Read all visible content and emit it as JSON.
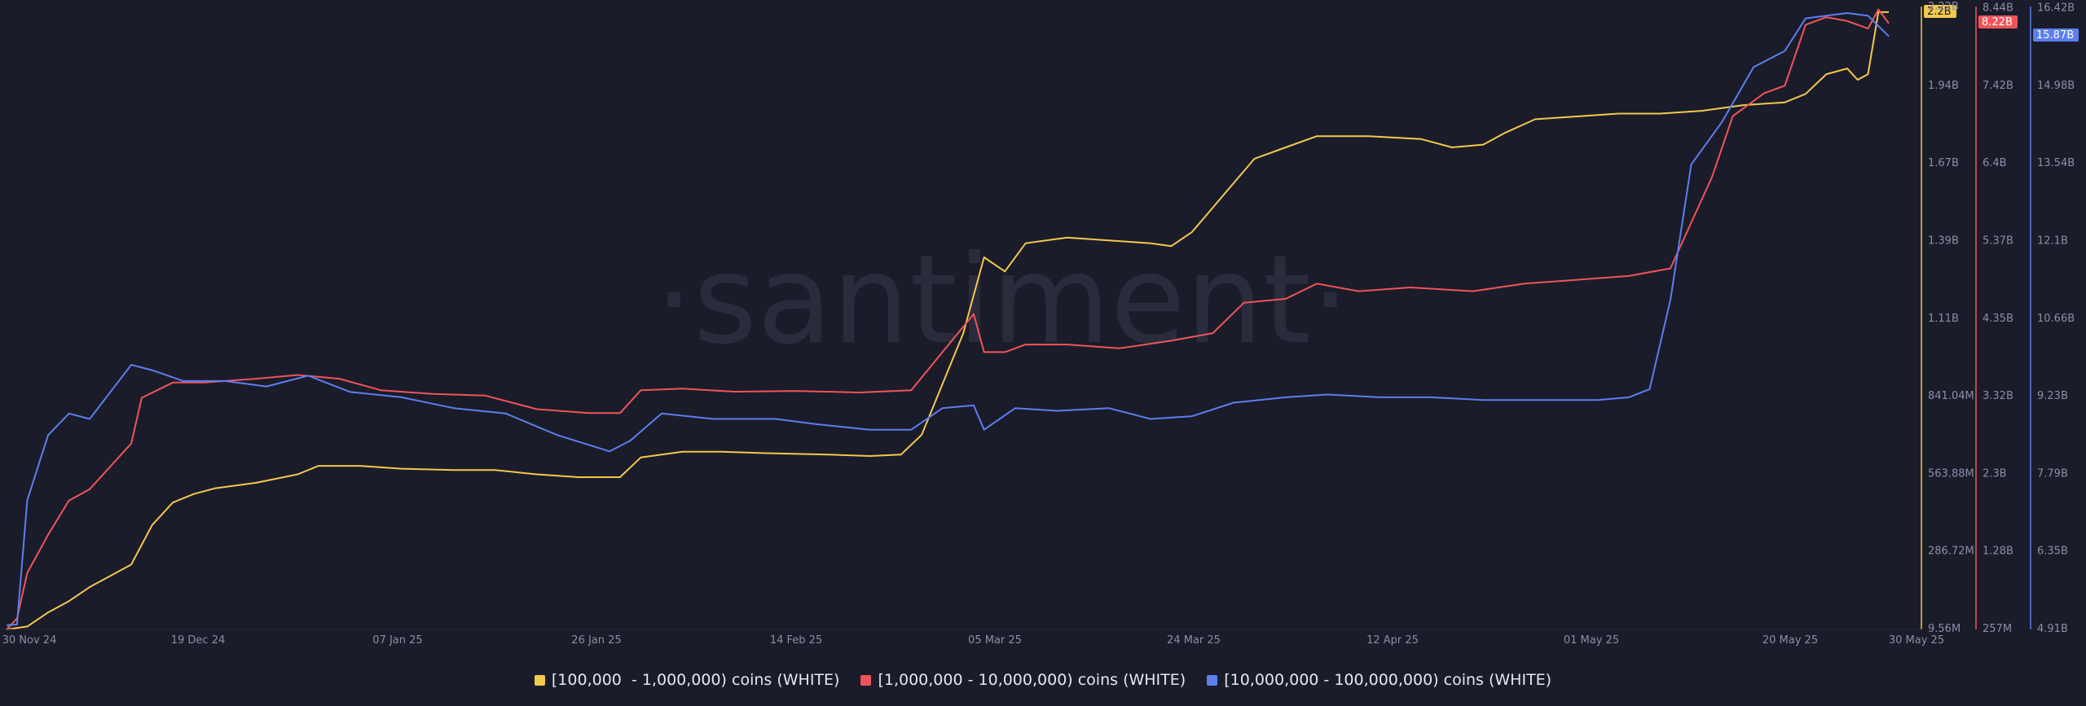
{
  "watermark": "·santiment·",
  "colors": {
    "background": "#1b1c2a",
    "grid": "#242636",
    "tick_text": "#8a8ea8",
    "yellow": "#f2c94c",
    "red": "#f0545b",
    "blue": "#5b7ff0"
  },
  "chart_data": {
    "type": "line",
    "x_ticks": [
      "30 Nov 24",
      "19 Dec 24",
      "07 Jan 25",
      "26 Jan 25",
      "14 Feb 25",
      "05 Mar 25",
      "24 Mar 25",
      "12 Apr 25",
      "01 May 25",
      "20 May 25",
      "30 May 25"
    ],
    "x_range": [
      "2024-11-30",
      "2025-05-30"
    ],
    "grid": false,
    "legend_position": "bottom-center",
    "axes": [
      {
        "id": "yellow",
        "ticks": [
          "9.56M",
          "286.72M",
          "563.88M",
          "841.04M",
          "1.11B",
          "1.39B",
          "1.67B",
          "1.94B"
        ],
        "range": [
          9560000,
          2220000000
        ],
        "current_value_label": "2.2B",
        "top_label": "2.22B",
        "color": "#f2c94c"
      },
      {
        "id": "red",
        "ticks": [
          "257M",
          "1.28B",
          "2.3B",
          "3.32B",
          "4.35B",
          "5.37B",
          "6.4B",
          "7.42B",
          "8.44B"
        ],
        "range": [
          257000000,
          8440000000
        ],
        "current_value_label": "8.22B",
        "color": "#f0545b"
      },
      {
        "id": "blue",
        "ticks": [
          "4.91B",
          "6.35B",
          "7.79B",
          "9.23B",
          "10.66B",
          "12.1B",
          "13.54B",
          "14.98B",
          "16.42B"
        ],
        "range": [
          4910000000,
          16420000000
        ],
        "current_value_label": "15.87B",
        "color": "#5b7ff0"
      }
    ],
    "series": [
      {
        "name": "[100,000  - 1,000,000) coins (WHITE)",
        "color": "#f2c94c",
        "axis": "yellow",
        "points": [
          [
            "2024-11-30",
            9600000
          ],
          [
            "2024-12-02",
            20000000
          ],
          [
            "2024-12-04",
            70000000
          ],
          [
            "2024-12-06",
            110000000
          ],
          [
            "2024-12-08",
            160000000
          ],
          [
            "2024-12-10",
            200000000
          ],
          [
            "2024-12-12",
            240000000
          ],
          [
            "2024-12-14",
            380000000
          ],
          [
            "2024-12-16",
            460000000
          ],
          [
            "2024-12-18",
            490000000
          ],
          [
            "2024-12-20",
            510000000
          ],
          [
            "2024-12-24",
            530000000
          ],
          [
            "2024-12-28",
            560000000
          ],
          [
            "2024-12-30",
            590000000
          ],
          [
            "2025-01-03",
            590000000
          ],
          [
            "2025-01-07",
            580000000
          ],
          [
            "2025-01-12",
            575000000
          ],
          [
            "2025-01-16",
            575000000
          ],
          [
            "2025-01-20",
            560000000
          ],
          [
            "2025-01-24",
            550000000
          ],
          [
            "2025-01-26",
            550000000
          ],
          [
            "2025-01-28",
            550000000
          ],
          [
            "2025-01-30",
            620000000
          ],
          [
            "2025-02-03",
            640000000
          ],
          [
            "2025-02-07",
            640000000
          ],
          [
            "2025-02-11",
            635000000
          ],
          [
            "2025-02-17",
            630000000
          ],
          [
            "2025-02-21",
            625000000
          ],
          [
            "2025-02-24",
            630000000
          ],
          [
            "2025-02-26",
            700000000
          ],
          [
            "2025-02-28",
            880000000
          ],
          [
            "2025-03-02",
            1060000000
          ],
          [
            "2025-03-04",
            1330000000
          ],
          [
            "2025-03-06",
            1280000000
          ],
          [
            "2025-03-08",
            1380000000
          ],
          [
            "2025-03-12",
            1400000000
          ],
          [
            "2025-03-16",
            1390000000
          ],
          [
            "2025-03-20",
            1380000000
          ],
          [
            "2025-03-22",
            1370000000
          ],
          [
            "2025-03-24",
            1420000000
          ],
          [
            "2025-03-27",
            1550000000
          ],
          [
            "2025-03-30",
            1680000000
          ],
          [
            "2025-04-02",
            1720000000
          ],
          [
            "2025-04-05",
            1760000000
          ],
          [
            "2025-04-10",
            1760000000
          ],
          [
            "2025-04-15",
            1750000000
          ],
          [
            "2025-04-18",
            1720000000
          ],
          [
            "2025-04-21",
            1730000000
          ],
          [
            "2025-04-23",
            1770000000
          ],
          [
            "2025-04-26",
            1820000000
          ],
          [
            "2025-04-30",
            1830000000
          ],
          [
            "2025-05-04",
            1840000000
          ],
          [
            "2025-05-08",
            1840000000
          ],
          [
            "2025-05-12",
            1850000000
          ],
          [
            "2025-05-16",
            1870000000
          ],
          [
            "2025-05-20",
            1880000000
          ],
          [
            "2025-05-22",
            1910000000
          ],
          [
            "2025-05-24",
            1980000000
          ],
          [
            "2025-05-26",
            2000000000
          ],
          [
            "2025-05-27",
            1960000000
          ],
          [
            "2025-05-28",
            1980000000
          ],
          [
            "2025-05-29",
            2200000000
          ],
          [
            "2025-05-30",
            2200000000
          ]
        ]
      },
      {
        "name": "[1,000,000 - 10,000,000) coins (WHITE)",
        "color": "#f0545b",
        "axis": "red",
        "points": [
          [
            "2024-11-30",
            257000000
          ],
          [
            "2024-12-01",
            400000000
          ],
          [
            "2024-12-02",
            1000000000
          ],
          [
            "2024-12-04",
            1500000000
          ],
          [
            "2024-12-06",
            1950000000
          ],
          [
            "2024-12-08",
            2100000000
          ],
          [
            "2024-12-10",
            2400000000
          ],
          [
            "2024-12-12",
            2700000000
          ],
          [
            "2024-12-13",
            3300000000
          ],
          [
            "2024-12-16",
            3500000000
          ],
          [
            "2024-12-19",
            3500000000
          ],
          [
            "2024-12-24",
            3550000000
          ],
          [
            "2024-12-28",
            3600000000
          ],
          [
            "2025-01-01",
            3550000000
          ],
          [
            "2025-01-05",
            3400000000
          ],
          [
            "2025-01-10",
            3350000000
          ],
          [
            "2025-01-15",
            3330000000
          ],
          [
            "2025-01-20",
            3150000000
          ],
          [
            "2025-01-25",
            3100000000
          ],
          [
            "2025-01-28",
            3100000000
          ],
          [
            "2025-01-30",
            3400000000
          ],
          [
            "2025-02-03",
            3420000000
          ],
          [
            "2025-02-08",
            3380000000
          ],
          [
            "2025-02-14",
            3390000000
          ],
          [
            "2025-02-20",
            3370000000
          ],
          [
            "2025-02-25",
            3400000000
          ],
          [
            "2025-02-28",
            3900000000
          ],
          [
            "2025-03-03",
            4400000000
          ],
          [
            "2025-03-04",
            3900000000
          ],
          [
            "2025-03-06",
            3900000000
          ],
          [
            "2025-03-08",
            4000000000
          ],
          [
            "2025-03-12",
            4000000000
          ],
          [
            "2025-03-17",
            3950000000
          ],
          [
            "2025-03-22",
            4050000000
          ],
          [
            "2025-03-26",
            4150000000
          ],
          [
            "2025-03-29",
            4550000000
          ],
          [
            "2025-04-02",
            4600000000
          ],
          [
            "2025-04-05",
            4800000000
          ],
          [
            "2025-04-09",
            4700000000
          ],
          [
            "2025-04-14",
            4750000000
          ],
          [
            "2025-04-20",
            4700000000
          ],
          [
            "2025-04-25",
            4800000000
          ],
          [
            "2025-04-30",
            4850000000
          ],
          [
            "2025-05-05",
            4900000000
          ],
          [
            "2025-05-09",
            5000000000
          ],
          [
            "2025-05-11",
            5600000000
          ],
          [
            "2025-05-13",
            6200000000
          ],
          [
            "2025-05-15",
            7000000000
          ],
          [
            "2025-05-18",
            7300000000
          ],
          [
            "2025-05-20",
            7400000000
          ],
          [
            "2025-05-22",
            8200000000
          ],
          [
            "2025-05-24",
            8300000000
          ],
          [
            "2025-05-26",
            8250000000
          ],
          [
            "2025-05-28",
            8150000000
          ],
          [
            "2025-05-29",
            8400000000
          ],
          [
            "2025-05-30",
            8220000000
          ]
        ]
      },
      {
        "name": "[10,000,000 - 100,000,000) coins (WHITE)",
        "color": "#5b7ff0",
        "axis": "blue",
        "points": [
          [
            "2024-11-30",
            4990000000
          ],
          [
            "2024-12-01",
            5000000000
          ],
          [
            "2024-12-02",
            7300000000
          ],
          [
            "2024-12-04",
            8500000000
          ],
          [
            "2024-12-06",
            8900000000
          ],
          [
            "2024-12-08",
            8800000000
          ],
          [
            "2024-12-10",
            9300000000
          ],
          [
            "2024-12-12",
            9800000000
          ],
          [
            "2024-12-14",
            9700000000
          ],
          [
            "2024-12-17",
            9500000000
          ],
          [
            "2024-12-21",
            9500000000
          ],
          [
            "2024-12-25",
            9400000000
          ],
          [
            "2024-12-29",
            9600000000
          ],
          [
            "2025-01-02",
            9300000000
          ],
          [
            "2025-01-07",
            9200000000
          ],
          [
            "2025-01-12",
            9000000000
          ],
          [
            "2025-01-17",
            8900000000
          ],
          [
            "2025-01-22",
            8500000000
          ],
          [
            "2025-01-27",
            8200000000
          ],
          [
            "2025-01-29",
            8400000000
          ],
          [
            "2025-02-01",
            8900000000
          ],
          [
            "2025-02-06",
            8800000000
          ],
          [
            "2025-02-12",
            8800000000
          ],
          [
            "2025-02-16",
            8700000000
          ],
          [
            "2025-02-21",
            8600000000
          ],
          [
            "2025-02-25",
            8600000000
          ],
          [
            "2025-02-28",
            9000000000
          ],
          [
            "2025-03-03",
            9050000000
          ],
          [
            "2025-03-04",
            8600000000
          ],
          [
            "2025-03-07",
            9000000000
          ],
          [
            "2025-03-11",
            8950000000
          ],
          [
            "2025-03-16",
            9000000000
          ],
          [
            "2025-03-20",
            8800000000
          ],
          [
            "2025-03-24",
            8850000000
          ],
          [
            "2025-03-28",
            9100000000
          ],
          [
            "2025-04-02",
            9200000000
          ],
          [
            "2025-04-06",
            9250000000
          ],
          [
            "2025-04-11",
            9200000000
          ],
          [
            "2025-04-16",
            9200000000
          ],
          [
            "2025-04-21",
            9150000000
          ],
          [
            "2025-04-27",
            9150000000
          ],
          [
            "2025-05-02",
            9150000000
          ],
          [
            "2025-05-05",
            9200000000
          ],
          [
            "2025-05-07",
            9350000000
          ],
          [
            "2025-05-09",
            11000000000
          ],
          [
            "2025-05-11",
            13500000000
          ],
          [
            "2025-05-14",
            14300000000
          ],
          [
            "2025-05-17",
            15300000000
          ],
          [
            "2025-05-20",
            15600000000
          ],
          [
            "2025-05-22",
            16200000000
          ],
          [
            "2025-05-24",
            16250000000
          ],
          [
            "2025-05-26",
            16300000000
          ],
          [
            "2025-05-28",
            16250000000
          ],
          [
            "2025-05-30",
            15870000000
          ]
        ]
      }
    ]
  }
}
